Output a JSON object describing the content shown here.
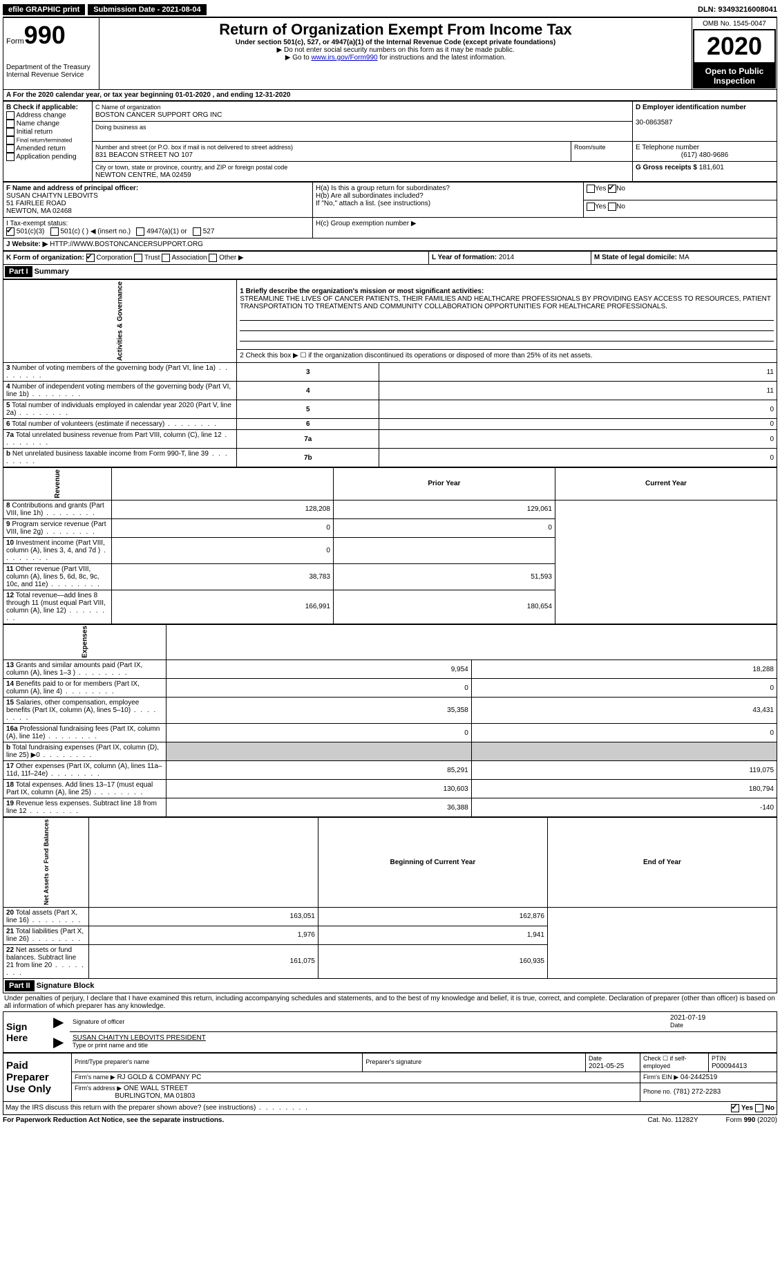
{
  "topbar": {
    "efile_label": "efile GRAPHIC print",
    "submission": "Submission Date - 2021-08-04",
    "dln": "DLN: 93493216008041"
  },
  "header": {
    "form_label": "Form",
    "form_num": "990",
    "dept": "Department of the Treasury\nInternal Revenue Service",
    "title": "Return of Organization Exempt From Income Tax",
    "sub1": "Under section 501(c), 527, or 4947(a)(1) of the Internal Revenue Code (except private foundations)",
    "sub2": "▶ Do not enter social security numbers on this form as it may be made public.",
    "sub3_pre": "▶ Go to ",
    "sub3_link": "www.irs.gov/Form990",
    "sub3_post": " for instructions and the latest information.",
    "omb": "OMB No. 1545-0047",
    "year": "2020",
    "open": "Open to Public Inspection"
  },
  "line_a": "For the 2020 calendar year, or tax year beginning 01-01-2020   , and ending 12-31-2020",
  "boxB": {
    "label": "B Check if applicable:",
    "items": [
      "Address change",
      "Name change",
      "Initial return",
      "Final return/terminated",
      "Amended return",
      "Application pending"
    ]
  },
  "boxC": {
    "label_name": "C Name of organization",
    "name": "BOSTON CANCER SUPPORT ORG INC",
    "dba_label": "Doing business as",
    "addr_label": "Number and street (or P.O. box if mail is not delivered to street address)",
    "room_label": "Room/suite",
    "addr": "831 BEACON STREET NO 107",
    "city_label": "City or town, state or province, country, and ZIP or foreign postal code",
    "city": "NEWTON CENTRE, MA  02459"
  },
  "boxD": {
    "label": "D Employer identification number",
    "value": "30-0863587"
  },
  "boxE": {
    "label": "E Telephone number",
    "value": "(617) 480-9686"
  },
  "boxG": {
    "label": "G Gross receipts $",
    "value": "181,601"
  },
  "boxF": {
    "label": "F Name and address of principal officer:",
    "name": "SUSAN CHAITYN LEBOVITS",
    "addr1": "51 FAIRLEE ROAD",
    "addr2": "NEWTON, MA  02468"
  },
  "boxH": {
    "a_label": "H(a)  Is this a group return for subordinates?",
    "b_label": "H(b)  Are all subordinates included?",
    "note": "If \"No,\" attach a list. (see instructions)",
    "c_label": "H(c)  Group exemption number ▶",
    "yes": "Yes",
    "no": "No"
  },
  "boxI": {
    "label": "I    Tax-exempt status:",
    "opts": [
      "501(c)(3)",
      "501(c) (  ) ◀ (insert no.)",
      "4947(a)(1) or",
      "527"
    ]
  },
  "boxJ": {
    "label": "J   Website: ▶",
    "value": "HTTP://WWW.BOSTONCANCERSUPPORT.ORG"
  },
  "boxK": {
    "label": "K Form of organization:",
    "opts": [
      "Corporation",
      "Trust",
      "Association",
      "Other ▶"
    ]
  },
  "boxL": {
    "label": "L Year of formation:",
    "value": "2014"
  },
  "boxM": {
    "label": "M State of legal domicile:",
    "value": "MA"
  },
  "part1": {
    "header": "Part I",
    "title": "Summary",
    "line1_label": "1  Briefly describe the organization's mission or most significant activities:",
    "mission": "STREAMLINE THE LIVES OF CANCER PATIENTS, THEIR FAMILIES AND HEALTHCARE PROFESSIONALS BY PROVIDING EASY ACCESS TO RESOURCES, PATIENT TRANSPORTATION TO TREATMENTS AND COMMUNITY COLLABORATION OPPORTUNITIES FOR HEALTHCARE PROFESSIONALS.",
    "line2": "2   Check this box ▶ ☐  if the organization discontinued its operations or disposed of more than 25% of its net assets.",
    "gov_rows": [
      {
        "n": "3",
        "t": "Number of voting members of the governing body (Part VI, line 1a)",
        "k": "3",
        "v": "11"
      },
      {
        "n": "4",
        "t": "Number of independent voting members of the governing body (Part VI, line 1b)",
        "k": "4",
        "v": "11"
      },
      {
        "n": "5",
        "t": "Total number of individuals employed in calendar year 2020 (Part V, line 2a)",
        "k": "5",
        "v": "0"
      },
      {
        "n": "6",
        "t": "Total number of volunteers (estimate if necessary)",
        "k": "6",
        "v": "0"
      },
      {
        "n": "7a",
        "t": "Total unrelated business revenue from Part VIII, column (C), line 12",
        "k": "7a",
        "v": "0"
      },
      {
        "n": "b",
        "t": "Net unrelated business taxable income from Form 990-T, line 39",
        "k": "7b",
        "v": "0"
      }
    ],
    "col_prior": "Prior Year",
    "col_current": "Current Year",
    "rev_rows": [
      {
        "n": "8",
        "t": "Contributions and grants (Part VIII, line 1h)",
        "p": "128,208",
        "c": "129,061"
      },
      {
        "n": "9",
        "t": "Program service revenue (Part VIII, line 2g)",
        "p": "0",
        "c": "0"
      },
      {
        "n": "10",
        "t": "Investment income (Part VIII, column (A), lines 3, 4, and 7d )",
        "p": "0",
        "c": ""
      },
      {
        "n": "11",
        "t": "Other revenue (Part VIII, column (A), lines 5, 6d, 8c, 9c, 10c, and 11e)",
        "p": "38,783",
        "c": "51,593"
      },
      {
        "n": "12",
        "t": "Total revenue—add lines 8 through 11 (must equal Part VIII, column (A), line 12)",
        "p": "166,991",
        "c": "180,654"
      }
    ],
    "exp_rows": [
      {
        "n": "13",
        "t": "Grants and similar amounts paid (Part IX, column (A), lines 1–3 )",
        "p": "9,954",
        "c": "18,288"
      },
      {
        "n": "14",
        "t": "Benefits paid to or for members (Part IX, column (A), line 4)",
        "p": "0",
        "c": "0"
      },
      {
        "n": "15",
        "t": "Salaries, other compensation, employee benefits (Part IX, column (A), lines 5–10)",
        "p": "35,358",
        "c": "43,431"
      },
      {
        "n": "16a",
        "t": "Professional fundraising fees (Part IX, column (A), line 11e)",
        "p": "0",
        "c": "0"
      },
      {
        "n": "b",
        "t": "Total fundraising expenses (Part IX, column (D), line 25) ▶0",
        "p": "",
        "c": "",
        "grey": true
      },
      {
        "n": "17",
        "t": "Other expenses (Part IX, column (A), lines 11a–11d, 11f–24e)",
        "p": "85,291",
        "c": "119,075"
      },
      {
        "n": "18",
        "t": "Total expenses. Add lines 13–17 (must equal Part IX, column (A), line 25)",
        "p": "130,603",
        "c": "180,794"
      },
      {
        "n": "19",
        "t": "Revenue less expenses. Subtract line 18 from line 12",
        "p": "36,388",
        "c": "-140"
      }
    ],
    "col_begin": "Beginning of Current Year",
    "col_end": "End of Year",
    "bal_rows": [
      {
        "n": "20",
        "t": "Total assets (Part X, line 16)",
        "p": "163,051",
        "c": "162,876"
      },
      {
        "n": "21",
        "t": "Total liabilities (Part X, line 26)",
        "p": "1,976",
        "c": "1,941"
      },
      {
        "n": "22",
        "t": "Net assets or fund balances. Subtract line 21 from line 20",
        "p": "161,075",
        "c": "160,935"
      }
    ],
    "vert_gov": "Activities & Governance",
    "vert_rev": "Revenue",
    "vert_exp": "Expenses",
    "vert_bal": "Net Assets or Fund Balances"
  },
  "part2": {
    "header": "Part II",
    "title": "Signature Block",
    "perjury": "Under penalties of perjury, I declare that I have examined this return, including accompanying schedules and statements, and to the best of my knowledge and belief, it is true, correct, and complete. Declaration of preparer (other than officer) is based on all information of which preparer has any knowledge.",
    "sign_here": "Sign Here",
    "sig_officer": "Signature of officer",
    "sig_date": "2021-07-19",
    "date_label": "Date",
    "officer_name": "SUSAN CHAITYN LEBOVITS  PRESIDENT",
    "name_title_label": "Type or print name and title",
    "paid": "Paid Preparer Use Only",
    "prep_name_label": "Print/Type preparer's name",
    "prep_sig_label": "Preparer's signature",
    "prep_date_label": "Date",
    "prep_date": "2021-05-25",
    "check_self": "Check ☐ if self-employed",
    "ptin_label": "PTIN",
    "ptin": "P00094413",
    "firm_name_label": "Firm's name    ▶",
    "firm_name": "RJ GOLD & COMPANY PC",
    "firm_ein_label": "Firm's EIN ▶",
    "firm_ein": "04-2442519",
    "firm_addr_label": "Firm's address ▶",
    "firm_addr1": "ONE WALL STREET",
    "firm_addr2": "BURLINGTON, MA  01803",
    "phone_label": "Phone no.",
    "phone": "(781) 272-2283",
    "discuss": "May the IRS discuss this return with the preparer shown above? (see instructions)",
    "yes": "Yes",
    "no": "No"
  },
  "footer": {
    "left": "For Paperwork Reduction Act Notice, see the separate instructions.",
    "mid": "Cat. No. 11282Y",
    "right": "Form 990 (2020)"
  }
}
